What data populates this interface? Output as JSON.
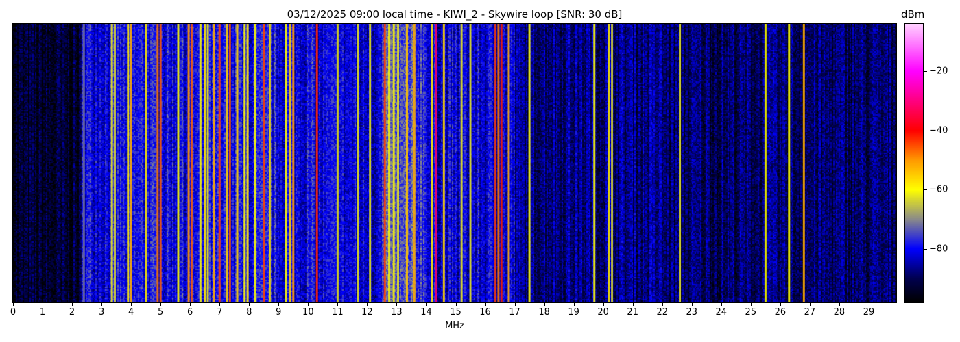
{
  "chart_data": {
    "type": "heatmap",
    "title": "03/12/2025 09:00 local time - KIWI_2 - Skywire loop [SNR: 30 dB]",
    "xlabel": "MHz",
    "ylabel": "",
    "xlim": [
      0,
      29.93
    ],
    "x_ticks": [
      "0",
      "1",
      "2",
      "3",
      "4",
      "5",
      "6",
      "7",
      "8",
      "9",
      "10",
      "11",
      "12",
      "13",
      "14",
      "15",
      "16",
      "17",
      "18",
      "19",
      "20",
      "21",
      "22",
      "23",
      "24",
      "25",
      "26",
      "27",
      "28",
      "29"
    ],
    "colorbar": {
      "label": "dBm",
      "range": [
        -98,
        -4
      ],
      "ticks": [
        -20,
        -40,
        -60,
        -80
      ],
      "tick_labels": [
        "−20",
        "−40",
        "−60",
        "−80"
      ],
      "colormap": [
        {
          "dbm": -98,
          "color": "#000000"
        },
        {
          "dbm": -90,
          "color": "#000050"
        },
        {
          "dbm": -80,
          "color": "#0000ff"
        },
        {
          "dbm": -70,
          "color": "#8a8a8a"
        },
        {
          "dbm": -60,
          "color": "#ffff00"
        },
        {
          "dbm": -50,
          "color": "#ff9900"
        },
        {
          "dbm": -40,
          "color": "#ff0000"
        },
        {
          "dbm": -20,
          "color": "#ff00ff"
        },
        {
          "dbm": -4,
          "color": "#ffd0ff"
        }
      ]
    },
    "noise_floor": [
      {
        "from_mhz": 0,
        "to_mhz": 2.3,
        "dbm": -94
      },
      {
        "from_mhz": 2.3,
        "to_mhz": 10.2,
        "dbm": -80
      },
      {
        "from_mhz": 10.2,
        "to_mhz": 12.5,
        "dbm": -82
      },
      {
        "from_mhz": 12.5,
        "to_mhz": 14.0,
        "dbm": -76
      },
      {
        "from_mhz": 14.0,
        "to_mhz": 17.0,
        "dbm": -82
      },
      {
        "from_mhz": 17.0,
        "to_mhz": 22.0,
        "dbm": -87
      },
      {
        "from_mhz": 22.0,
        "to_mhz": 30,
        "dbm": -89
      }
    ],
    "signals": [
      {
        "mhz": 2.4,
        "dbm": -72
      },
      {
        "mhz": 3.35,
        "dbm": -62
      },
      {
        "mhz": 3.45,
        "dbm": -64
      },
      {
        "mhz": 3.9,
        "dbm": -58
      },
      {
        "mhz": 4.0,
        "dbm": -52
      },
      {
        "mhz": 4.5,
        "dbm": -58
      },
      {
        "mhz": 4.9,
        "dbm": -48
      },
      {
        "mhz": 5.0,
        "dbm": -46
      },
      {
        "mhz": 5.6,
        "dbm": -60
      },
      {
        "mhz": 5.95,
        "dbm": -50
      },
      {
        "mhz": 6.05,
        "dbm": -46
      },
      {
        "mhz": 6.35,
        "dbm": -60
      },
      {
        "mhz": 6.5,
        "dbm": -58
      },
      {
        "mhz": 6.6,
        "dbm": -62
      },
      {
        "mhz": 6.8,
        "dbm": -52
      },
      {
        "mhz": 7.0,
        "dbm": -44
      },
      {
        "mhz": 7.25,
        "dbm": -56
      },
      {
        "mhz": 7.35,
        "dbm": -46
      },
      {
        "mhz": 7.6,
        "dbm": -56
      },
      {
        "mhz": 7.85,
        "dbm": -60
      },
      {
        "mhz": 7.95,
        "dbm": -58
      },
      {
        "mhz": 8.2,
        "dbm": -60
      },
      {
        "mhz": 8.5,
        "dbm": -44
      },
      {
        "mhz": 8.7,
        "dbm": -58
      },
      {
        "mhz": 9.25,
        "dbm": -60
      },
      {
        "mhz": 9.4,
        "dbm": -56
      },
      {
        "mhz": 9.5,
        "dbm": -50
      },
      {
        "mhz": 10.3,
        "dbm": -42
      },
      {
        "mhz": 11.0,
        "dbm": -62
      },
      {
        "mhz": 11.7,
        "dbm": -62
      },
      {
        "mhz": 12.1,
        "dbm": -62
      },
      {
        "mhz": 12.6,
        "dbm": -44
      },
      {
        "mhz": 12.75,
        "dbm": -60
      },
      {
        "mhz": 12.9,
        "dbm": -60
      },
      {
        "mhz": 13.05,
        "dbm": -62
      },
      {
        "mhz": 13.35,
        "dbm": -54
      },
      {
        "mhz": 13.6,
        "dbm": -52
      },
      {
        "mhz": 14.2,
        "dbm": -58
      },
      {
        "mhz": 14.35,
        "dbm": -32
      },
      {
        "mhz": 14.6,
        "dbm": -56
      },
      {
        "mhz": 15.2,
        "dbm": -62
      },
      {
        "mhz": 15.5,
        "dbm": -62
      },
      {
        "mhz": 16.35,
        "dbm": -44
      },
      {
        "mhz": 16.45,
        "dbm": -48
      },
      {
        "mhz": 16.55,
        "dbm": -42
      },
      {
        "mhz": 16.8,
        "dbm": -52
      },
      {
        "mhz": 17.5,
        "dbm": -60
      },
      {
        "mhz": 19.7,
        "dbm": -60
      },
      {
        "mhz": 20.2,
        "dbm": -58
      },
      {
        "mhz": 20.3,
        "dbm": -64
      },
      {
        "mhz": 22.6,
        "dbm": -62
      },
      {
        "mhz": 25.5,
        "dbm": -60
      },
      {
        "mhz": 26.3,
        "dbm": -60
      },
      {
        "mhz": 26.8,
        "dbm": -52
      }
    ]
  }
}
